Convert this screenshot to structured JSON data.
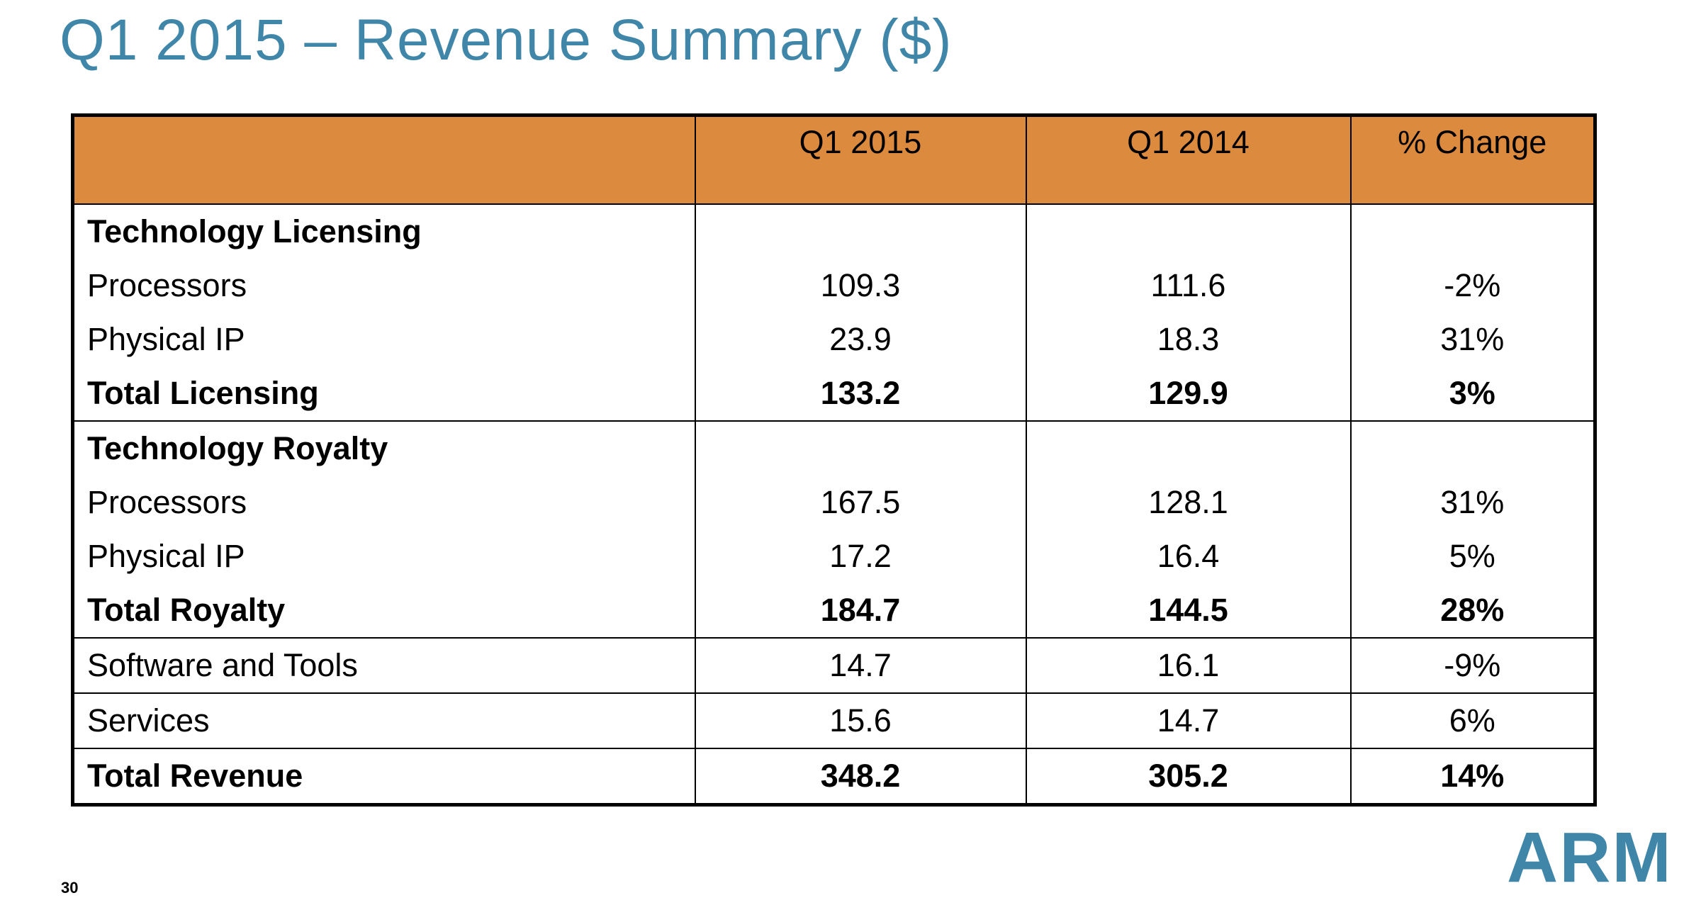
{
  "title": "Q1 2015 – Revenue Summary ($)",
  "colors": {
    "title": "#3f86a8",
    "header_bg": "#dc8a3e",
    "logo": "#3f86a8"
  },
  "table": {
    "headers": [
      "",
      "Q1 2015",
      "Q1 2014",
      "% Change"
    ],
    "rows": [
      {
        "label": "Technology Licensing",
        "q1_2015": "",
        "q1_2014": "",
        "change": ""
      },
      {
        "label": "Processors",
        "q1_2015": "109.3",
        "q1_2014": "111.6",
        "change": "-2%"
      },
      {
        "label": "Physical IP",
        "q1_2015": "23.9",
        "q1_2014": "18.3",
        "change": "31%"
      },
      {
        "label": "Total Licensing",
        "q1_2015": "133.2",
        "q1_2014": "129.9",
        "change": "3%"
      },
      {
        "label": "Technology Royalty",
        "q1_2015": "",
        "q1_2014": "",
        "change": ""
      },
      {
        "label": "Processors",
        "q1_2015": "167.5",
        "q1_2014": "128.1",
        "change": "31%"
      },
      {
        "label": "Physical IP",
        "q1_2015": "17.2",
        "q1_2014": "16.4",
        "change": "5%"
      },
      {
        "label": "Total Royalty",
        "q1_2015": "184.7",
        "q1_2014": "144.5",
        "change": "28%"
      },
      {
        "label": "Software and Tools",
        "q1_2015": "14.7",
        "q1_2014": "16.1",
        "change": "-9%"
      },
      {
        "label": "Services",
        "q1_2015": "15.6",
        "q1_2014": "14.7",
        "change": "6%"
      },
      {
        "label": "Total Revenue",
        "q1_2015": "348.2",
        "q1_2014": "305.2",
        "change": "14%"
      }
    ]
  },
  "page_number": "30",
  "logo_text": "ARM"
}
